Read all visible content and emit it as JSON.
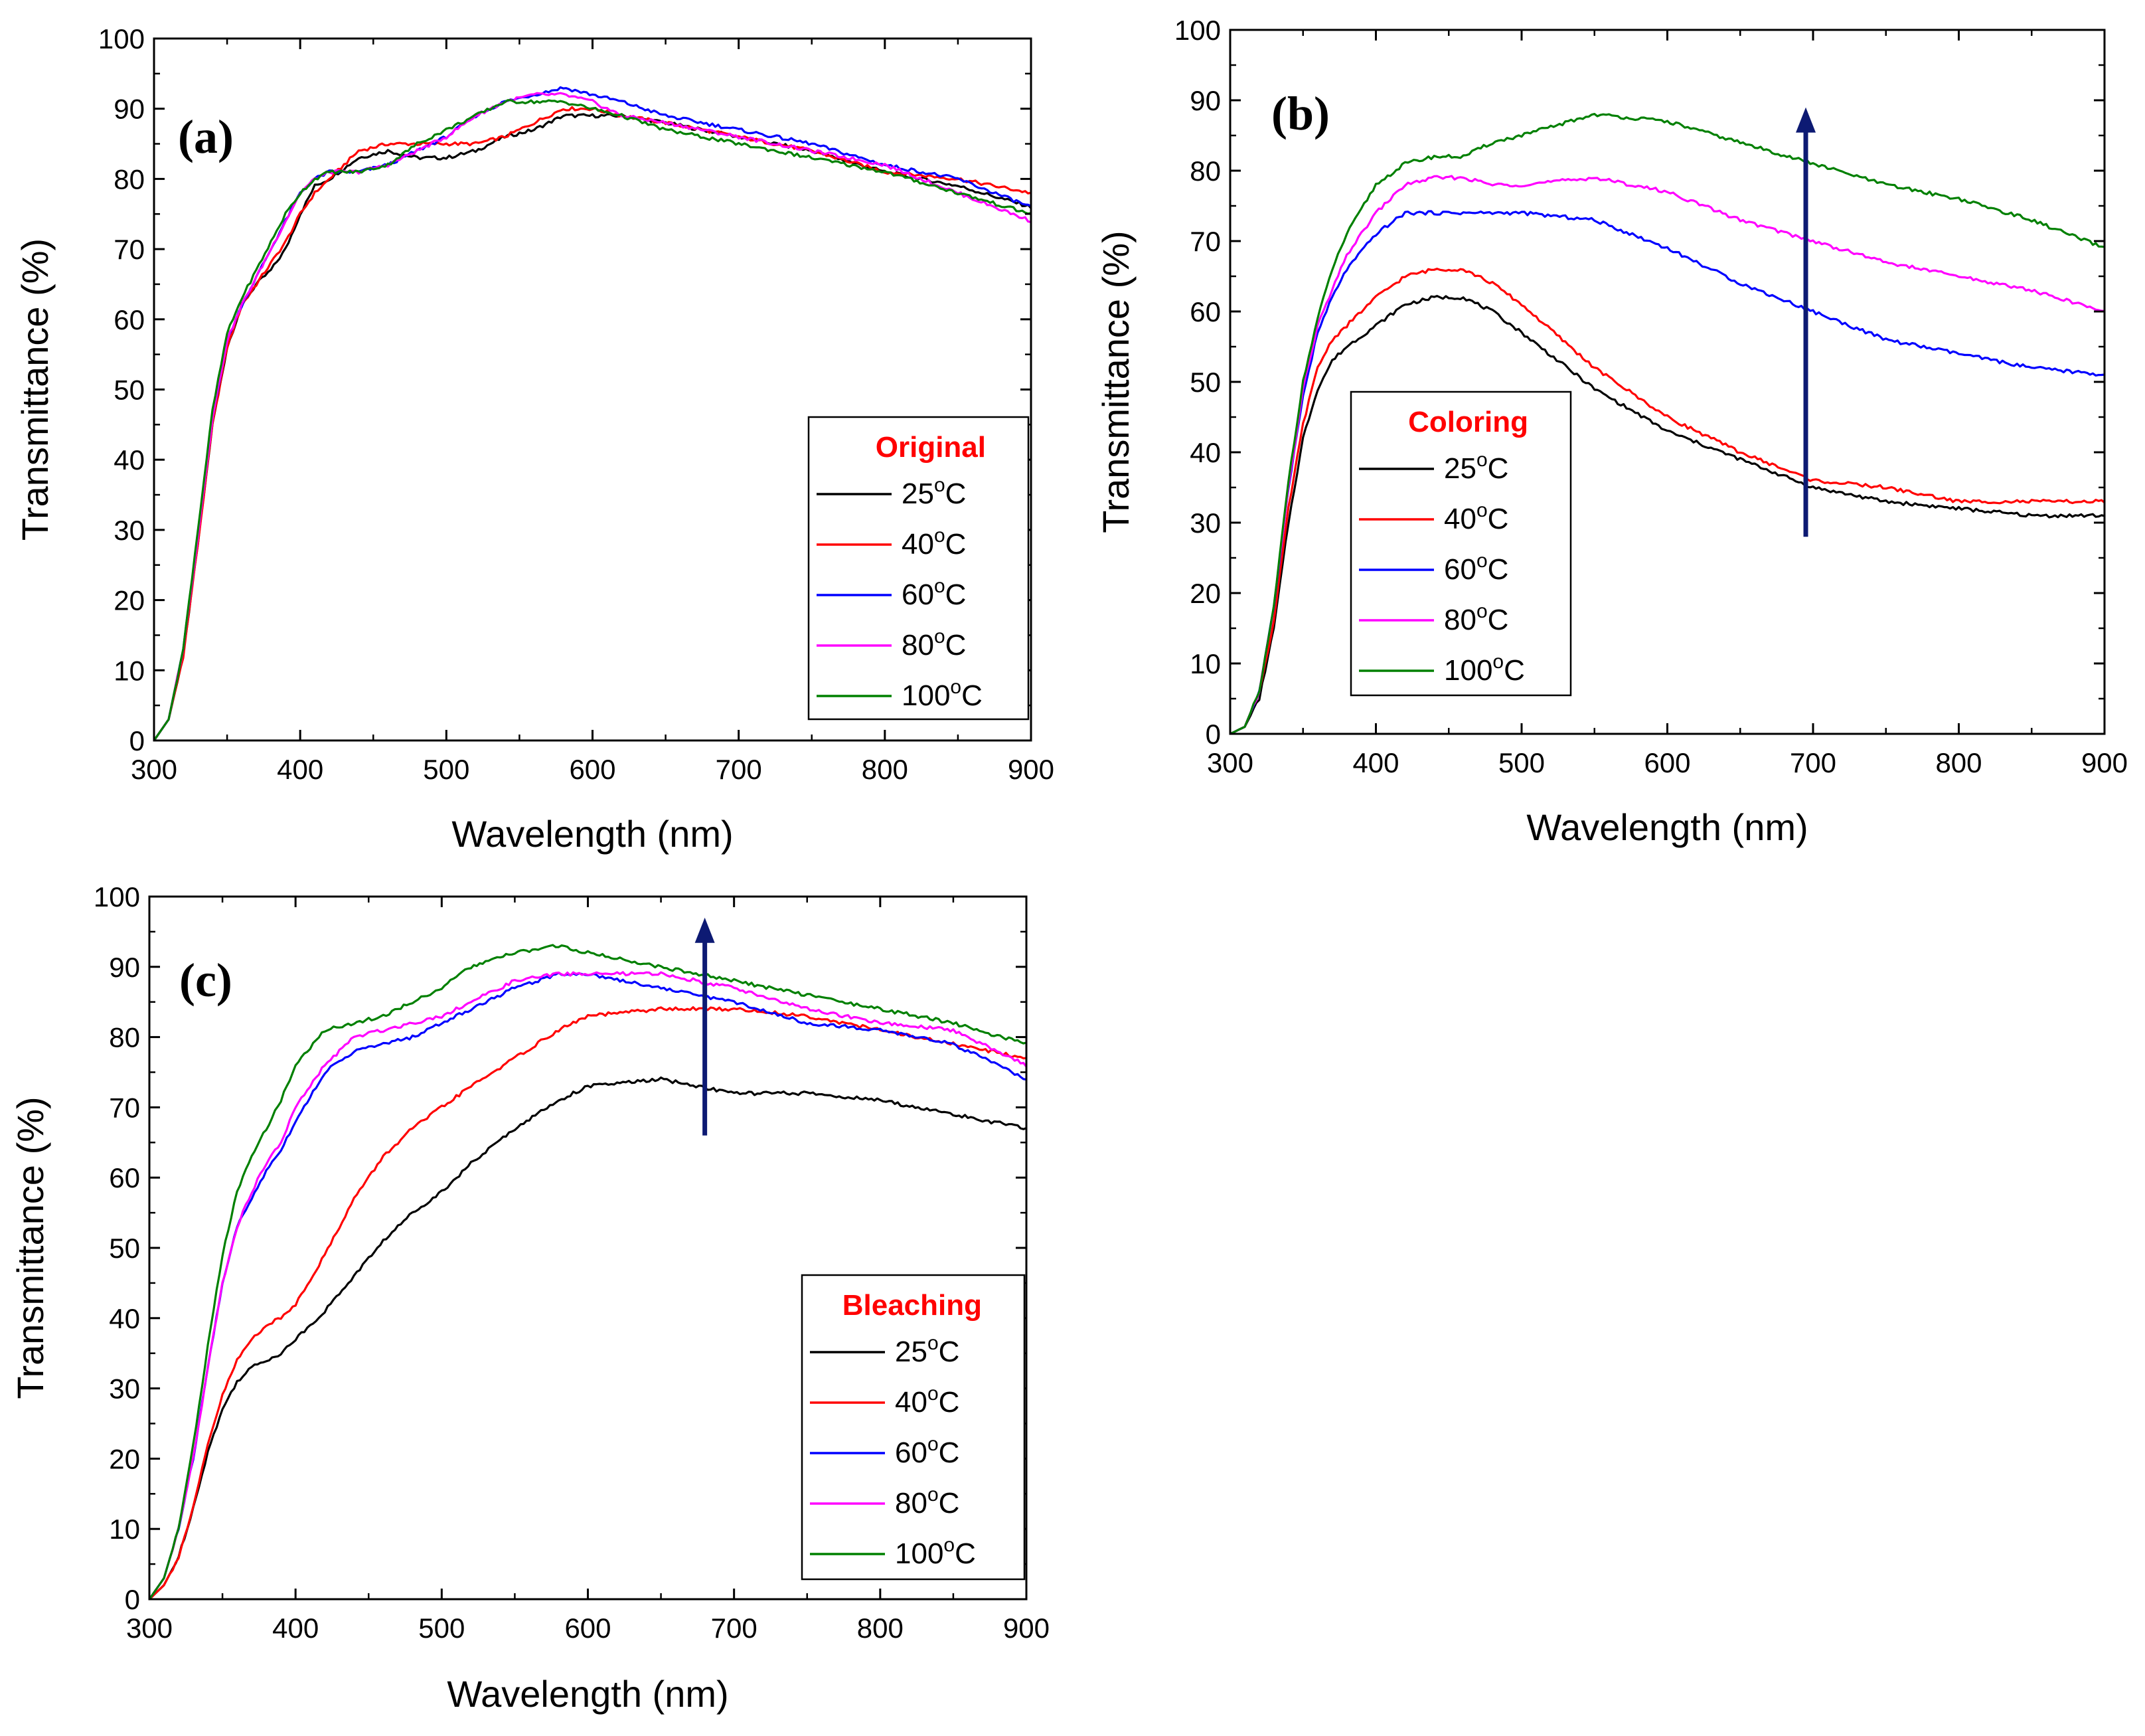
{
  "figure": {
    "legend_title_color": "#ff0000",
    "arrow_color": "#0d1a73",
    "series_colors": [
      "#000000",
      "#ff0000",
      "#0000ff",
      "#ff00ff",
      "#008000"
    ]
  },
  "chart_data": [
    {
      "type": "line",
      "panel": "(a)",
      "legend_title": "Original",
      "xlabel": "Wavelength (nm)",
      "ylabel": "Transmittance (%)",
      "xlim": [
        300,
        900
      ],
      "ylim": [
        0,
        100
      ],
      "xticks": [
        "300",
        "400",
        "500",
        "600",
        "700",
        "800",
        "900"
      ],
      "yticks": [
        "0",
        "10",
        "20",
        "30",
        "40",
        "50",
        "60",
        "70",
        "80",
        "90",
        "100"
      ],
      "arrow": null,
      "x": [
        300,
        310,
        320,
        330,
        340,
        350,
        360,
        370,
        380,
        390,
        400,
        410,
        420,
        440,
        460,
        480,
        500,
        520,
        540,
        560,
        580,
        600,
        620,
        650,
        700,
        750,
        800,
        850,
        900
      ],
      "series": [
        {
          "name": "25",
          "unit": "C",
          "values": [
            0,
            3,
            12,
            28,
            45,
            56,
            62,
            65,
            67,
            70,
            75,
            79,
            80,
            83,
            84,
            83,
            83,
            84,
            86,
            87,
            89,
            89,
            89,
            88,
            86,
            84,
            81,
            79,
            76
          ]
        },
        {
          "name": "40",
          "unit": "C",
          "values": [
            0,
            3,
            12,
            28,
            45,
            56,
            62,
            65,
            68,
            71,
            75,
            78,
            80,
            84,
            85,
            85,
            85,
            85,
            86,
            88,
            90,
            90,
            89,
            88,
            86,
            84,
            81,
            80,
            78
          ]
        },
        {
          "name": "60",
          "unit": "C",
          "values": [
            0,
            3,
            13,
            29,
            46,
            57,
            62,
            66,
            70,
            74,
            78,
            80,
            81,
            81,
            82,
            84,
            86,
            89,
            91,
            92,
            93,
            92,
            91,
            89,
            87,
            85,
            82,
            80,
            76
          ]
        },
        {
          "name": "80",
          "unit": "C",
          "values": [
            0,
            3,
            13,
            29,
            46,
            57,
            62,
            66,
            70,
            74,
            78,
            80,
            81,
            81,
            82,
            84,
            86,
            89,
            91,
            92,
            92,
            91,
            89,
            88,
            86,
            84,
            82,
            78,
            74
          ]
        },
        {
          "name": "100",
          "unit": "C",
          "values": [
            0,
            3,
            13,
            30,
            47,
            58,
            63,
            67,
            71,
            75,
            78,
            80,
            81,
            81,
            82,
            85,
            87,
            89,
            91,
            91,
            91,
            90,
            89,
            87,
            85,
            83,
            81,
            78,
            75
          ]
        }
      ]
    },
    {
      "type": "line",
      "panel": "(b)",
      "legend_title": "Coloring",
      "xlabel": "Wavelength (nm)",
      "ylabel": "Transmittance (%)",
      "xlim": [
        300,
        900
      ],
      "ylim": [
        0,
        100
      ],
      "xticks": [
        "300",
        "400",
        "500",
        "600",
        "700",
        "800",
        "900"
      ],
      "yticks": [
        "0",
        "10",
        "20",
        "30",
        "40",
        "50",
        "60",
        "70",
        "80",
        "90",
        "100"
      ],
      "arrow": {
        "x": 695,
        "y_from": 28,
        "y_to": 89
      },
      "x": [
        300,
        310,
        320,
        330,
        340,
        350,
        360,
        370,
        380,
        400,
        420,
        440,
        460,
        480,
        500,
        550,
        600,
        650,
        700,
        750,
        800,
        850,
        900
      ],
      "series": [
        {
          "name": "25",
          "unit": "C",
          "values": [
            0,
            1,
            5,
            15,
            30,
            42,
            49,
            53,
            55,
            58,
            61,
            62,
            62,
            60,
            57,
            49,
            43,
            39,
            35,
            33,
            32,
            31,
            31
          ]
        },
        {
          "name": "40",
          "unit": "C",
          "values": [
            0,
            1,
            6,
            16,
            32,
            44,
            52,
            56,
            58,
            62,
            65,
            66,
            66,
            64,
            61,
            52,
            45,
            40,
            36,
            35,
            33,
            33,
            33
          ]
        },
        {
          "name": "60",
          "unit": "C",
          "values": [
            0,
            1,
            6,
            18,
            35,
            48,
            57,
            62,
            66,
            71,
            74,
            74,
            74,
            74,
            74,
            73,
            69,
            64,
            60,
            56,
            54,
            52,
            51
          ]
        },
        {
          "name": "80",
          "unit": "C",
          "values": [
            0,
            1,
            6,
            18,
            35,
            49,
            58,
            63,
            68,
            74,
            78,
            79,
            79,
            78,
            78,
            79,
            77,
            73,
            70,
            67,
            65,
            63,
            60
          ]
        },
        {
          "name": "100",
          "unit": "C",
          "values": [
            0,
            1,
            6,
            18,
            36,
            50,
            59,
            66,
            71,
            78,
            81,
            82,
            82,
            84,
            85,
            88,
            87,
            84,
            81,
            78,
            76,
            73,
            69
          ]
        }
      ]
    },
    {
      "type": "line",
      "panel": "(c)",
      "legend_title": "Bleaching",
      "xlabel": "Wavelength (nm)",
      "ylabel": "Transmittance (%)",
      "xlim": [
        300,
        900
      ],
      "ylim": [
        0,
        100
      ],
      "xticks": [
        "300",
        "400",
        "500",
        "600",
        "700",
        "800",
        "900"
      ],
      "yticks": [
        "0",
        "10",
        "20",
        "30",
        "40",
        "50",
        "60",
        "70",
        "80",
        "90",
        "100"
      ],
      "arrow": {
        "x": 680,
        "y_from": 66,
        "y_to": 97
      },
      "x": [
        300,
        310,
        320,
        330,
        340,
        350,
        360,
        370,
        380,
        390,
        400,
        420,
        440,
        460,
        480,
        500,
        520,
        550,
        580,
        600,
        650,
        700,
        750,
        800,
        850,
        900
      ],
      "series": [
        {
          "name": "25",
          "unit": "C",
          "values": [
            0,
            2,
            6,
            13,
            21,
            27,
            31,
            33,
            34,
            35,
            37,
            41,
            46,
            51,
            55,
            58,
            62,
            67,
            71,
            73,
            74,
            72,
            72,
            71,
            69,
            67
          ]
        },
        {
          "name": "40",
          "unit": "C",
          "values": [
            0,
            2,
            6,
            13,
            22,
            29,
            34,
            37,
            39,
            40,
            42,
            49,
            57,
            63,
            67,
            70,
            73,
            77,
            81,
            83,
            84,
            84,
            83,
            81,
            79,
            77
          ]
        },
        {
          "name": "60",
          "unit": "C",
          "values": [
            0,
            3,
            10,
            20,
            33,
            45,
            53,
            57,
            61,
            64,
            68,
            75,
            78,
            79,
            80,
            82,
            84,
            87,
            89,
            89,
            87,
            85,
            82,
            81,
            79,
            74
          ]
        },
        {
          "name": "80",
          "unit": "C",
          "values": [
            0,
            3,
            10,
            20,
            33,
            45,
            53,
            58,
            62,
            65,
            70,
            76,
            80,
            81,
            82,
            83,
            85,
            88,
            89,
            89,
            89,
            87,
            84,
            82,
            81,
            76
          ]
        },
        {
          "name": "100",
          "unit": "C",
          "values": [
            0,
            3,
            10,
            22,
            36,
            49,
            58,
            63,
            67,
            71,
            76,
            81,
            82,
            83,
            85,
            87,
            90,
            92,
            93,
            92,
            90,
            88,
            86,
            84,
            82,
            79
          ]
        }
      ]
    }
  ]
}
